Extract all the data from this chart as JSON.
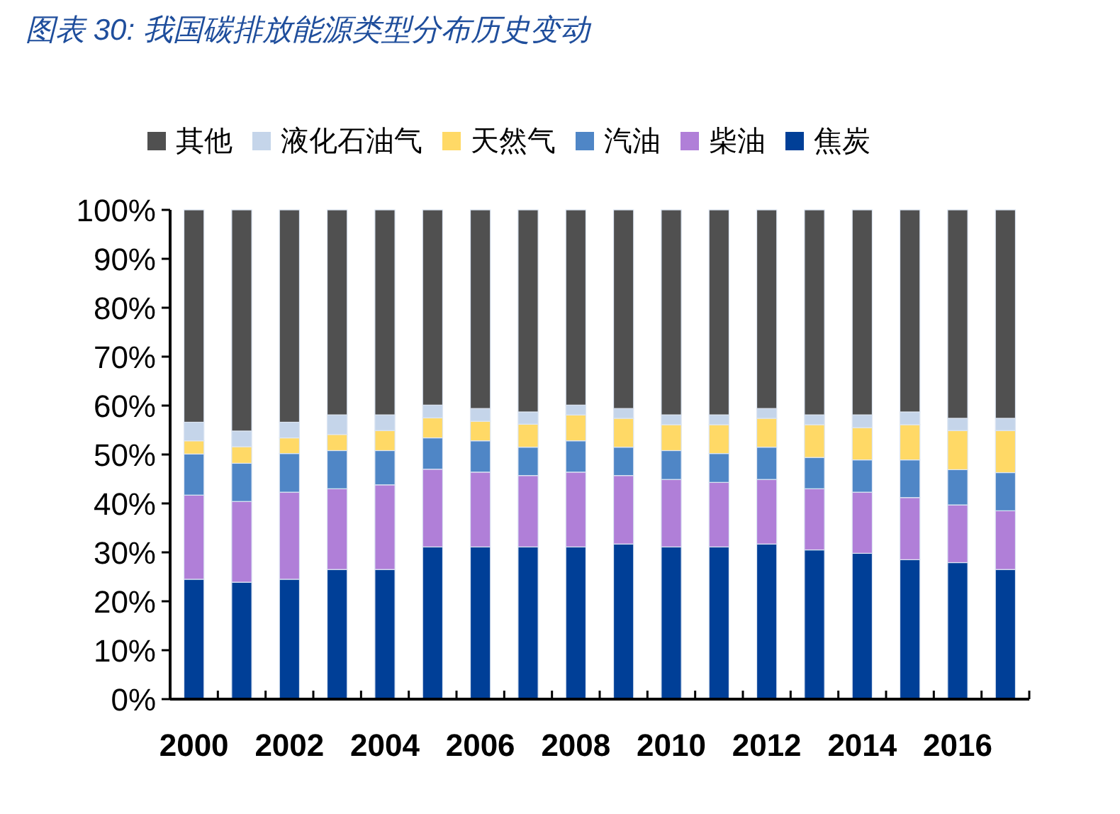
{
  "chart_data": {
    "type": "bar",
    "title": "图表 30: 我国碳排放能源类型分布历史变动",
    "stacked": true,
    "legend": "top",
    "grid": false,
    "categories": [
      "2000",
      null,
      "2002",
      null,
      "2004",
      null,
      "2006",
      null,
      "2008",
      null,
      "2010",
      null,
      "2012",
      null,
      "2014",
      null,
      "2016",
      null
    ],
    "ylim": [
      0,
      100
    ],
    "yticks": [
      {
        "value": 0,
        "label": "0%"
      },
      {
        "value": 10,
        "label": "10%"
      },
      {
        "value": 20,
        "label": "20%"
      },
      {
        "value": 30,
        "label": "30%"
      },
      {
        "value": 40,
        "label": "40%"
      },
      {
        "value": 50,
        "label": "50%"
      },
      {
        "value": 60,
        "label": "60%"
      },
      {
        "value": 70,
        "label": "70%"
      },
      {
        "value": 80,
        "label": "80%"
      },
      {
        "value": 90,
        "label": "90%"
      },
      {
        "value": 100,
        "label": "100%"
      }
    ],
    "series": [
      {
        "name": "焦炭",
        "color": "#003f97",
        "values": [
          24.5,
          23.9,
          24.5,
          26.5,
          26.5,
          31.1,
          31.1,
          31.1,
          31.1,
          31.7,
          31.1,
          31.1,
          31.7,
          30.5,
          29.8,
          28.5,
          27.9,
          26.5
        ]
      },
      {
        "name": "柴油",
        "color": "#b07fd8",
        "values": [
          17.2,
          16.5,
          17.8,
          16.5,
          17.3,
          15.9,
          15.3,
          14.6,
          15.3,
          14.0,
          13.8,
          13.2,
          13.2,
          12.5,
          12.5,
          12.7,
          11.8,
          12.0
        ]
      },
      {
        "name": "汽油",
        "color": "#4f86c6",
        "values": [
          8.4,
          7.8,
          7.9,
          7.8,
          7.0,
          6.4,
          6.4,
          5.8,
          6.4,
          5.8,
          5.9,
          5.9,
          6.6,
          6.4,
          6.6,
          7.7,
          7.2,
          7.8
        ]
      },
      {
        "name": "天然气",
        "color": "#ffd966",
        "values": [
          2.7,
          3.4,
          3.2,
          3.3,
          4.1,
          4.1,
          4.0,
          4.7,
          5.3,
          5.9,
          5.3,
          5.9,
          5.9,
          6.7,
          6.6,
          7.2,
          8.0,
          8.6
        ]
      },
      {
        "name": "液化石油气",
        "color": "#c5d5ea",
        "values": [
          3.8,
          3.2,
          3.2,
          4.0,
          3.2,
          2.6,
          2.6,
          2.5,
          2.0,
          2.0,
          2.0,
          2.0,
          2.0,
          2.0,
          2.6,
          2.6,
          2.5,
          2.5
        ]
      },
      {
        "name": "其他",
        "color": "#505050",
        "values": [
          43.4,
          45.2,
          43.4,
          41.9,
          41.9,
          39.9,
          40.6,
          41.3,
          39.9,
          40.6,
          41.9,
          41.9,
          40.6,
          41.9,
          41.9,
          41.3,
          42.6,
          42.6
        ]
      }
    ]
  }
}
